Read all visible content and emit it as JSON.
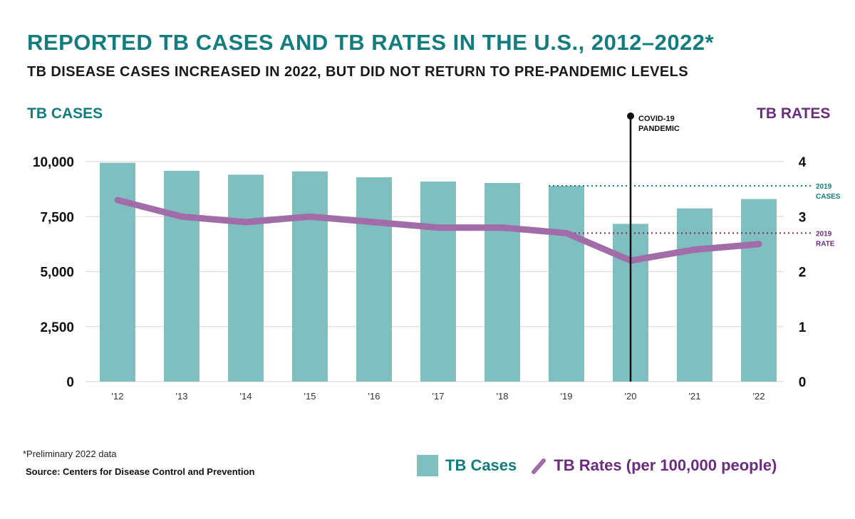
{
  "title": "REPORTED TB CASES AND TB RATES IN THE U.S., 2012–2022*",
  "subtitle": "TB DISEASE CASES INCREASED IN 2022, BUT DID NOT RETURN TO PRE-PANDEMIC LEVELS",
  "footnote": "*Preliminary 2022 data",
  "source": "Source: Centers for Disease Control and Prevention",
  "colors": {
    "title": "#127c7e",
    "bars": "#7fbfc0",
    "line": "#a26ca8",
    "rate_text": "#6b2d7b"
  },
  "chart_data": {
    "type": "bar+line",
    "categories": [
      "'12",
      "'13",
      "'14",
      "'15",
      "'16",
      "'17",
      "'18",
      "'19",
      "'20",
      "'21",
      "'22"
    ],
    "series": [
      {
        "name": "TB Cases",
        "type": "bar",
        "axis": "left",
        "values": [
          9945,
          9582,
          9406,
          9557,
          9287,
          9093,
          9029,
          8900,
          7171,
          7874,
          8300
        ]
      },
      {
        "name": "TB Rates (per 100,000 people)",
        "type": "line",
        "axis": "right",
        "values": [
          3.3,
          3.0,
          2.9,
          3.0,
          2.9,
          2.8,
          2.8,
          2.7,
          2.2,
          2.4,
          2.5
        ]
      }
    ],
    "ylabel_left": "TB CASES",
    "ylabel_right": "TB RATES",
    "ylim_left": [
      0,
      10000
    ],
    "ylim_right": [
      0,
      4
    ],
    "yticks_left": [
      "0",
      "2,500",
      "5,000",
      "7,500",
      "10,000"
    ],
    "yticks_right": [
      "0",
      "1",
      "2",
      "3",
      "4"
    ],
    "grid": true,
    "legend_position": "bottom-right",
    "annotations": {
      "event": {
        "label_line1": "COVID-19",
        "label_line2": "PANDEMIC",
        "at": "'20"
      },
      "ref_cases": {
        "label_line1": "2019",
        "label_line2": "CASES",
        "value": 8900
      },
      "ref_rate": {
        "label_line1": "2019",
        "label_line2": "RATE",
        "value": 2.7
      }
    }
  }
}
